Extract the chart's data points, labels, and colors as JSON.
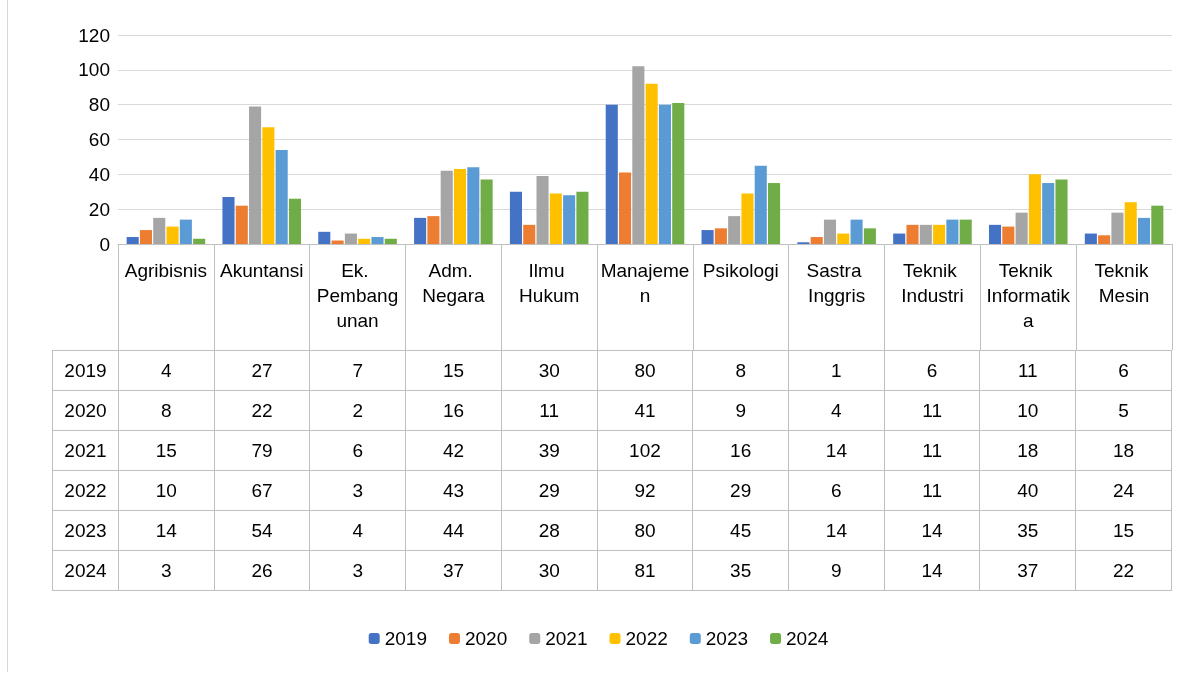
{
  "chart_data": {
    "type": "bar",
    "categories": [
      "Agribisnis",
      "Akuntansi",
      "Ek. Pembangunan",
      "Adm. Negara",
      "Ilmu Hukum",
      "Manajemen",
      "Psikologi",
      "Sastra Inggris",
      "Teknik Industri",
      "Teknik Informatika",
      "Teknik Mesin"
    ],
    "series": [
      {
        "name": "2019",
        "color": "#4472c4",
        "values": [
          4,
          27,
          7,
          15,
          30,
          80,
          8,
          1,
          6,
          11,
          6
        ]
      },
      {
        "name": "2020",
        "color": "#ed7d31",
        "values": [
          8,
          22,
          2,
          16,
          11,
          41,
          9,
          4,
          11,
          10,
          5
        ]
      },
      {
        "name": "2021",
        "color": "#a5a5a5",
        "values": [
          15,
          79,
          6,
          42,
          39,
          102,
          16,
          14,
          11,
          18,
          18
        ]
      },
      {
        "name": "2022",
        "color": "#ffc000",
        "values": [
          10,
          67,
          3,
          43,
          29,
          92,
          29,
          6,
          11,
          40,
          24
        ]
      },
      {
        "name": "2023",
        "color": "#5b9bd5",
        "values": [
          14,
          54,
          4,
          44,
          28,
          80,
          45,
          14,
          14,
          35,
          15
        ]
      },
      {
        "name": "2024",
        "color": "#70ad47",
        "values": [
          3,
          26,
          3,
          37,
          30,
          81,
          35,
          9,
          14,
          37,
          22
        ]
      }
    ],
    "ylim": [
      0,
      120
    ],
    "yticks": [
      0,
      20,
      40,
      60,
      80,
      100,
      120
    ],
    "grid": "y",
    "legend": "bottom",
    "data_labels": true
  }
}
